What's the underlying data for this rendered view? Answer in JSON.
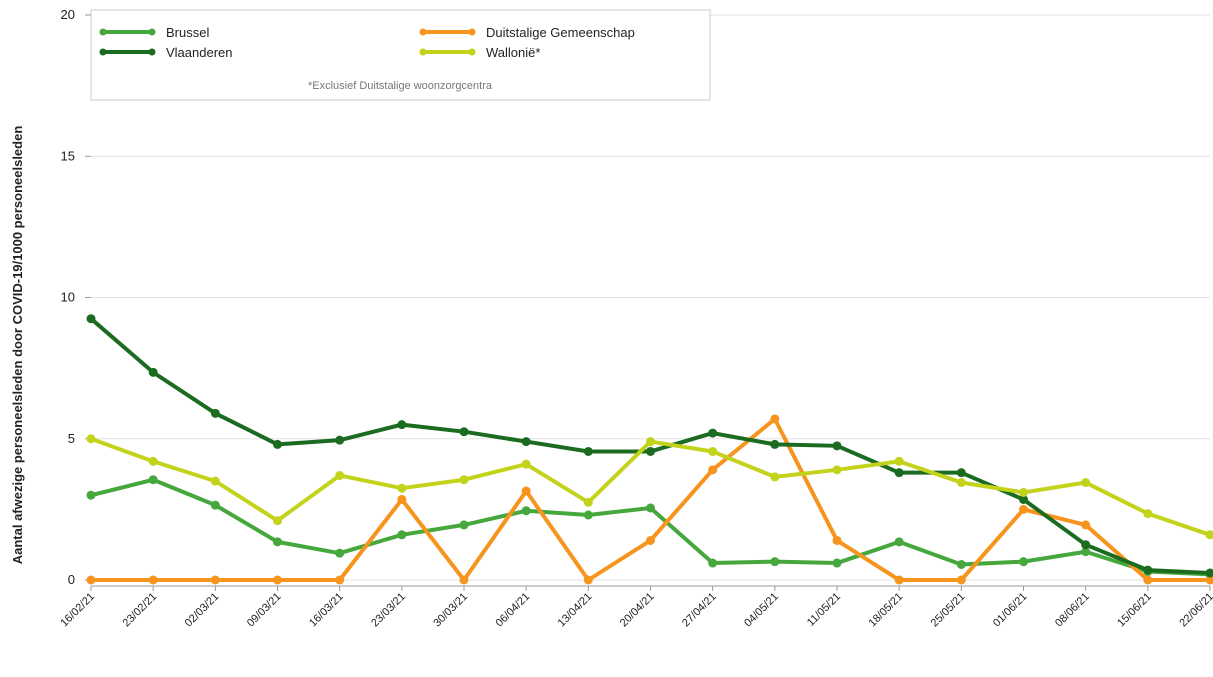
{
  "chart_data": {
    "type": "line",
    "y_label": "Aantal afwezige personeelsleden door COVID-19/1000 personeelsleden",
    "annotation": "*Exclusief Duitstalige woonzorgcentra",
    "categories": [
      "16/02/21",
      "23/02/21",
      "02/03/21",
      "09/03/21",
      "16/03/21",
      "23/03/21",
      "30/03/21",
      "06/04/21",
      "13/04/21",
      "20/04/21",
      "27/04/21",
      "04/05/21",
      "11/05/21",
      "18/05/21",
      "25/05/21",
      "01/06/21",
      "08/06/21",
      "15/06/21",
      "22/06/21"
    ],
    "series": [
      {
        "name": "Brussel",
        "color": "#46a83c",
        "values": [
          3.0,
          3.55,
          2.65,
          1.35,
          0.95,
          1.6,
          1.95,
          2.45,
          2.3,
          2.55,
          0.6,
          0.65,
          0.6,
          1.35,
          0.55,
          0.65,
          1.0,
          0.3,
          0.2
        ]
      },
      {
        "name": "Duitstalige Gemeenschap",
        "color": "#f7941d",
        "values": [
          0,
          0,
          0,
          0,
          0,
          2.85,
          0,
          3.15,
          0,
          1.4,
          3.9,
          5.7,
          1.4,
          0,
          0,
          2.5,
          1.95,
          0,
          0
        ]
      },
      {
        "name": "Vlaanderen",
        "color": "#1b6b21",
        "values": [
          9.25,
          7.35,
          5.9,
          4.8,
          4.95,
          5.5,
          5.25,
          4.9,
          4.55,
          4.55,
          5.2,
          4.8,
          4.75,
          3.8,
          3.8,
          2.85,
          1.25,
          0.35,
          0.25
        ]
      },
      {
        "name": "Wallonië*",
        "color": "#c3d31c",
        "values": [
          5.0,
          4.2,
          3.5,
          2.1,
          3.7,
          3.25,
          3.55,
          4.1,
          2.75,
          4.9,
          4.55,
          3.65,
          3.9,
          4.2,
          3.45,
          3.1,
          3.45,
          2.35,
          1.6
        ]
      }
    ],
    "ylim": [
      0,
      20
    ],
    "yticks": [
      0,
      5,
      10,
      15,
      20
    ],
    "grid": true
  }
}
